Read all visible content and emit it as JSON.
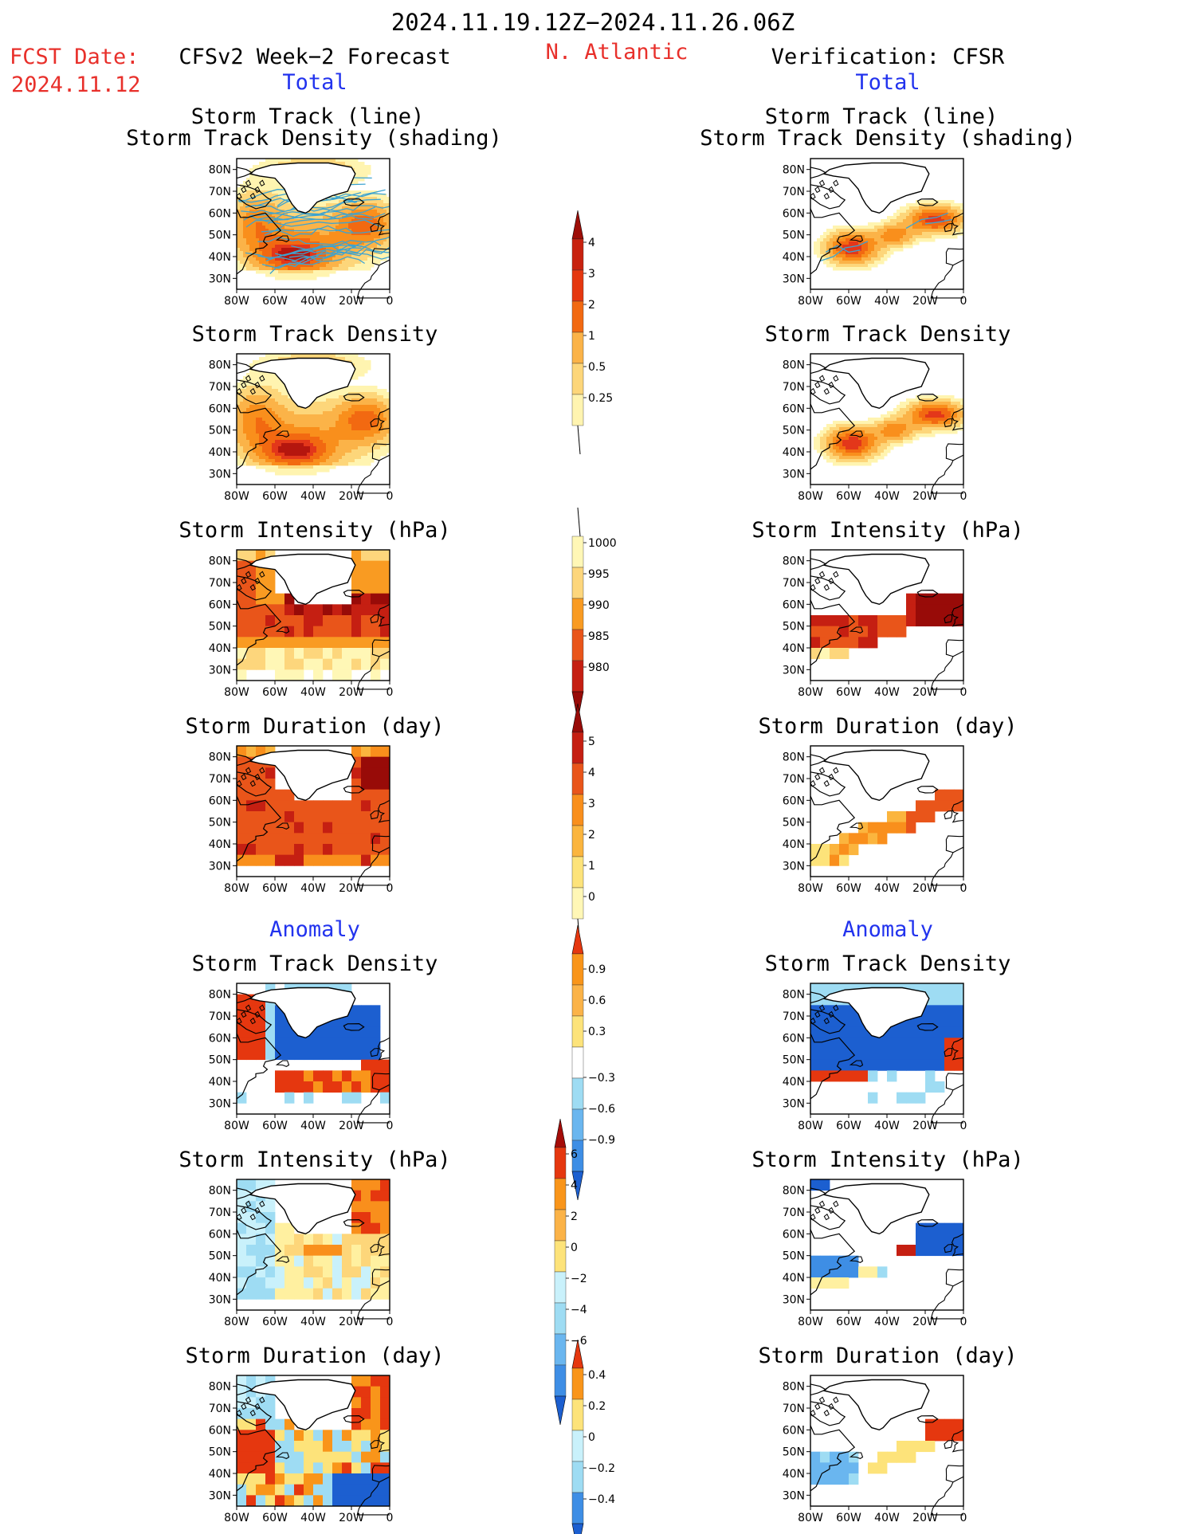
{
  "header": {
    "date_range": "2024.11.19.12Z−2024.11.26.06Z",
    "fcst_label": "FCST Date:",
    "fcst_date": "2024.11.12",
    "left_title": "CFSv2 Week−2 Forecast",
    "region": "N. Atlantic",
    "right_title": "Verification: CFSR",
    "total_label": "Total",
    "anomaly_label": "Anomaly"
  },
  "panel_titles": {
    "storm_track_line": "Storm Track (line)",
    "storm_track_shading": "Storm Track Density (shading)",
    "storm_track_density": "Storm Track Density",
    "storm_intensity": "Storm Intensity (hPa)",
    "storm_duration": "Storm Duration (day)"
  },
  "axes": {
    "lat_ticks": [
      "80N",
      "70N",
      "60N",
      "50N",
      "40N",
      "30N"
    ],
    "lon_ticks": [
      "80W",
      "60W",
      "40W",
      "20W",
      "0"
    ]
  },
  "colors": {
    "warm": [
      "#fff9b8",
      "#fde37a",
      "#fbb53e",
      "#f9951a",
      "#f26c10",
      "#e53a14",
      "#c81f10",
      "#9e0e08"
    ],
    "cool": [
      "#c9f1fb",
      "#9edcf3",
      "#6ab6ef",
      "#3e8ee5",
      "#1c5fd0"
    ],
    "track_line": "#3da3d0",
    "coast": "#000000"
  },
  "chart_data": [
    {
      "type": "heatmap",
      "panel": "forecast-total-storm-track",
      "colorbar": "density"
    },
    {
      "type": "heatmap",
      "panel": "forecast-total-density",
      "colorbar": "density"
    },
    {
      "type": "heatmap",
      "panel": "forecast-total-intensity",
      "colorbar": "intensity"
    },
    {
      "type": "heatmap",
      "panel": "forecast-total-duration",
      "colorbar": "duration"
    },
    {
      "type": "heatmap",
      "panel": "forecast-anomaly-density",
      "colorbar": "density-anomaly"
    },
    {
      "type": "heatmap",
      "panel": "forecast-anomaly-intensity",
      "colorbar": "intensity-anomaly"
    },
    {
      "type": "heatmap",
      "panel": "forecast-anomaly-duration",
      "colorbar": "duration-anomaly"
    },
    {
      "type": "heatmap",
      "panel": "verification-total-storm-track",
      "colorbar": "density"
    },
    {
      "type": "heatmap",
      "panel": "verification-total-density",
      "colorbar": "density"
    },
    {
      "type": "heatmap",
      "panel": "verification-total-intensity",
      "colorbar": "intensity"
    },
    {
      "type": "heatmap",
      "panel": "verification-total-duration",
      "colorbar": "duration"
    },
    {
      "type": "heatmap",
      "panel": "verification-anomaly-density",
      "colorbar": "density-anomaly"
    },
    {
      "type": "heatmap",
      "panel": "verification-anomaly-intensity",
      "colorbar": "intensity-anomaly"
    },
    {
      "type": "heatmap",
      "panel": "verification-anomaly-duration",
      "colorbar": "duration-anomaly"
    }
  ],
  "colorbars": {
    "density": {
      "levels": [
        "0.25",
        "0.5",
        "1",
        "2",
        "3",
        "4"
      ]
    },
    "intensity": {
      "levels": [
        "1000",
        "995",
        "990",
        "985",
        "980"
      ]
    },
    "duration": {
      "levels": [
        "0",
        "1",
        "2",
        "3",
        "4",
        "5"
      ]
    },
    "density_anomaly": {
      "levels": [
        "0.9",
        "0.6",
        "0.3",
        "−0.3",
        "−0.6",
        "−0.9"
      ]
    },
    "intensity_anomaly": {
      "levels": [
        "6",
        "4",
        "2",
        "0",
        "−2",
        "−4",
        "−6"
      ]
    },
    "duration_anomaly": {
      "levels": [
        "0.4",
        "0.2",
        "0",
        "−0.2",
        "−0.4"
      ]
    }
  }
}
